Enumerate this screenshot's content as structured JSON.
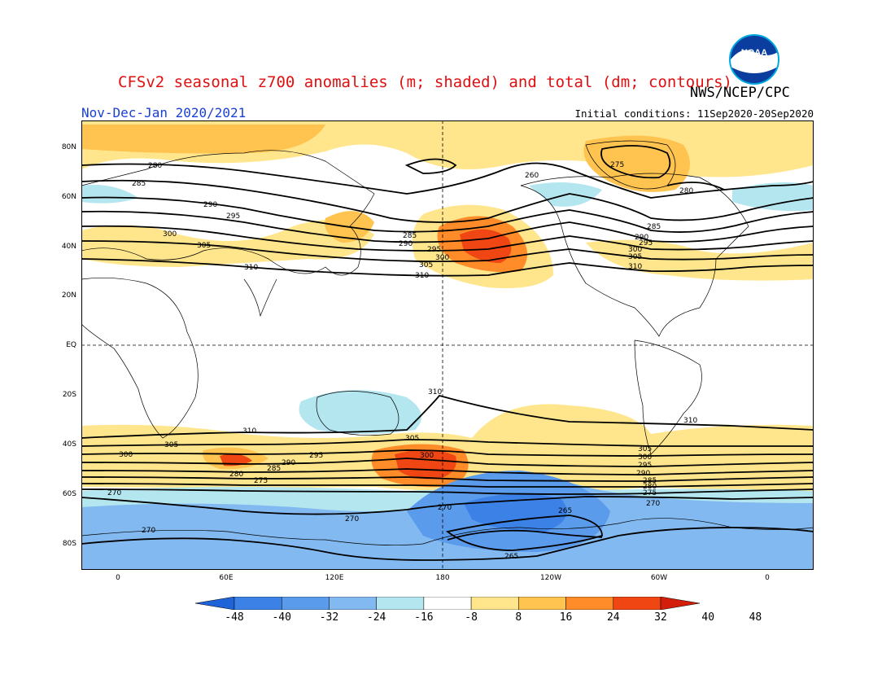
{
  "title": "CFSv2 seasonal z700 anomalies (m; shaded) and total (dm; contours)",
  "agency": "NWS/NCEP/CPC",
  "period": "Nov-Dec-Jan 2020/2021",
  "initial_conditions": "Initial conditions: 11Sep2020-20Sep2020",
  "logo_text": "NOAA",
  "lat_labels": [
    "80N",
    "60N",
    "40N",
    "20N",
    "EQ",
    "20S",
    "40S",
    "60S",
    "80S"
  ],
  "lon_labels": [
    "0",
    "60E",
    "120E",
    "180",
    "120W",
    "60W",
    "0"
  ],
  "colorbar": {
    "labels": [
      "-48",
      "-40",
      "-32",
      "-24",
      "-16",
      "-8",
      "8",
      "16",
      "24",
      "32",
      "40",
      "48"
    ],
    "colors": [
      "#1e64d8",
      "#3c82e6",
      "#5a9bec",
      "#82b9f0",
      "#b4e6f0",
      "#ffffff",
      "#ffe68c",
      "#ffc350",
      "#ff8c28",
      "#f04614",
      "#d21e0a"
    ]
  },
  "contour_labels": [
    "280",
    "285",
    "290",
    "295",
    "300",
    "305",
    "310",
    "260",
    "275",
    "265",
    "270"
  ]
}
